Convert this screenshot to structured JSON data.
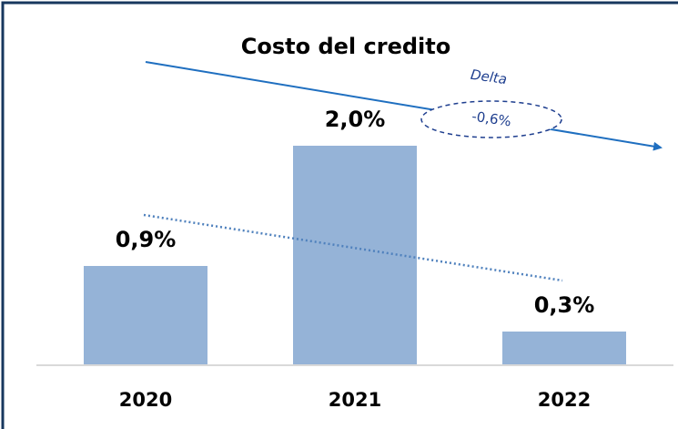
{
  "chart_data": {
    "type": "bar",
    "title": "Costo del credito",
    "categories": [
      "2020",
      "2021",
      "2022"
    ],
    "values": [
      0.9,
      2.0,
      0.3
    ],
    "value_labels": [
      "0,9%",
      "2,0%",
      "0,3%"
    ],
    "color": "#95b3d7",
    "annotations": [
      "Delta",
      "-0,6%"
    ]
  }
}
